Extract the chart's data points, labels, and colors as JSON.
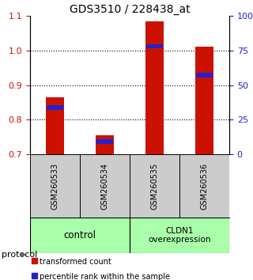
{
  "title": "GDS3510 / 228438_at",
  "samples": [
    "GSM260533",
    "GSM260534",
    "GSM260535",
    "GSM260536"
  ],
  "ylim_left": [
    0.7,
    1.1
  ],
  "yticks_left": [
    0.7,
    0.8,
    0.9,
    1.0,
    1.1
  ],
  "yticks_right": [
    0,
    25,
    50,
    75,
    100
  ],
  "ybase": 0.7,
  "red_tops": [
    0.865,
    0.755,
    1.085,
    1.01
  ],
  "blue_tops": [
    0.835,
    0.737,
    1.012,
    0.928
  ],
  "bar_width": 0.35,
  "red_color": "#cc1100",
  "blue_color": "#2222cc",
  "protocol_color": "#aaffaa",
  "sample_box_color": "#cccccc",
  "legend_red": "transformed count",
  "legend_blue": "percentile rank within the sample",
  "gridline_y": [
    0.8,
    0.9,
    1.0
  ]
}
